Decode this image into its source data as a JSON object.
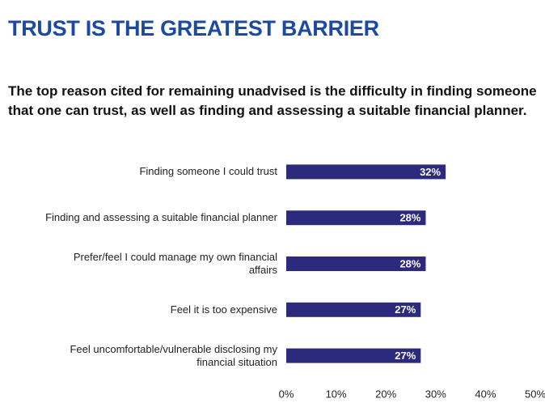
{
  "chart_data": {
    "type": "bar",
    "orientation": "horizontal",
    "title": "TRUST IS THE GREATEST BARRIER",
    "subtitle": "The top reason cited for remaining unadvised is the difficulty in finding someone that one can trust, as well as finding and assessing a suitable financial planner.",
    "categories": [
      "Finding someone I could trust",
      "Finding and assessing a suitable financial planner",
      "Prefer/feel I could manage my own financial affairs",
      "Feel it is too expensive",
      "Feel uncomfortable/vulnerable disclosing my financial situation"
    ],
    "values": [
      32,
      28,
      28,
      27,
      27
    ],
    "value_labels": [
      "32%",
      "28%",
      "28%",
      "27%",
      "27%"
    ],
    "color": "#2c2a7c",
    "xlim": [
      0,
      50
    ],
    "xticks": [
      {
        "value": 0,
        "label": "0%"
      },
      {
        "value": 10,
        "label": "10%"
      },
      {
        "value": 20,
        "label": "20%"
      },
      {
        "value": 30,
        "label": "30%"
      },
      {
        "value": 40,
        "label": "40%"
      },
      {
        "value": 50,
        "label": "50%"
      }
    ],
    "grid": false
  }
}
